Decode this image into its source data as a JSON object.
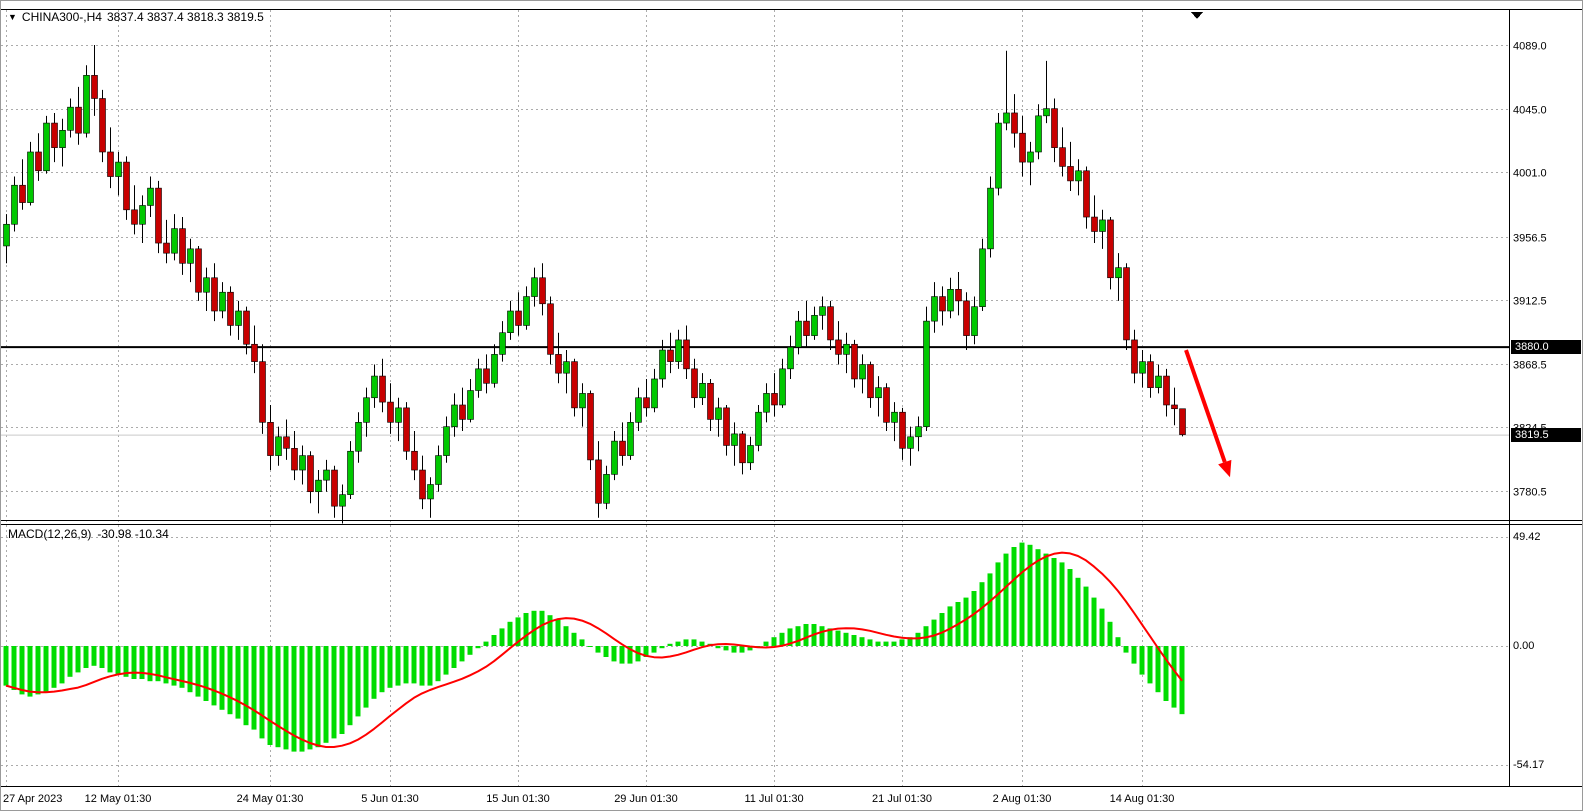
{
  "header": {
    "title": "CHINA300-,H4",
    "quote": "3837.4 3837.4 3818.3 3819.5",
    "symbol_icon": "triangle-down-icon"
  },
  "macd_panel": {
    "label": "MACD(12,26,9)",
    "values": "-30.98 -10.34"
  },
  "colors": {
    "background": "#FFFFFF",
    "candle_up": "#00C800",
    "candle_down": "#C80000",
    "candle_outline": "#000000",
    "macd_histogram": "#00DC00",
    "macd_signal": "#FF0000",
    "grid": "#ABABAB",
    "hline": "#000000",
    "arrow": "#FF0000",
    "tag_bg": "#000000",
    "tag_text": "#FFFFFF"
  },
  "chart_data": {
    "type": "candlestick+macd",
    "symbol": "CHINA300-",
    "timeframe": "H4",
    "quote": {
      "open": 3837.4,
      "high": 3837.4,
      "low": 3818.3,
      "close": 3819.5
    },
    "price_axis": {
      "ticks": [
        "4089.0",
        "4045.0",
        "4001.0",
        "3956.5",
        "3912.5",
        "3868.5",
        "3824.5",
        "3780.5"
      ],
      "max": 4089.0,
      "min": 3780.5,
      "hline": 3880.0,
      "hline_label": "3880.0",
      "current": 3819.5,
      "current_label": "3819.5"
    },
    "time_axis": [
      {
        "label": "27 Apr 2023",
        "i": 0
      },
      {
        "label": "12 May 01:30",
        "i": 14
      },
      {
        "label": "24 May 01:30",
        "i": 33
      },
      {
        "label": "5 Jun 01:30",
        "i": 48
      },
      {
        "label": "15 Jun 01:30",
        "i": 64
      },
      {
        "label": "29 Jun 01:30",
        "i": 80
      },
      {
        "label": "11 Jul 01:30",
        "i": 96
      },
      {
        "label": "21 Jul 01:30",
        "i": 112
      },
      {
        "label": "2 Aug 01:30",
        "i": 127
      },
      {
        "label": "14 Aug 01:30",
        "i": 142
      }
    ],
    "candles": [
      [
        3950,
        3972,
        3938,
        3965
      ],
      [
        3965,
        3998,
        3960,
        3992
      ],
      [
        3992,
        4010,
        3975,
        3980
      ],
      [
        3980,
        4022,
        3978,
        4015
      ],
      [
        4015,
        4028,
        3995,
        4002
      ],
      [
        4002,
        4040,
        4000,
        4035
      ],
      [
        4035,
        4042,
        4008,
        4018
      ],
      [
        4018,
        4038,
        4005,
        4030
      ],
      [
        4030,
        4052,
        4025,
        4046
      ],
      [
        4046,
        4060,
        4020,
        4028
      ],
      [
        4028,
        4075,
        4025,
        4068
      ],
      [
        4068,
        4089,
        4040,
        4052
      ],
      [
        4052,
        4058,
        4008,
        4015
      ],
      [
        4015,
        4032,
        3990,
        3998
      ],
      [
        3998,
        4015,
        3985,
        4008
      ],
      [
        4008,
        4012,
        3968,
        3975
      ],
      [
        3975,
        3992,
        3958,
        3965
      ],
      [
        3965,
        3985,
        3952,
        3978
      ],
      [
        3978,
        3998,
        3970,
        3990
      ],
      [
        3990,
        3995,
        3945,
        3952
      ],
      [
        3952,
        3968,
        3938,
        3945
      ],
      [
        3945,
        3972,
        3940,
        3962
      ],
      [
        3962,
        3970,
        3930,
        3938
      ],
      [
        3938,
        3955,
        3925,
        3948
      ],
      [
        3948,
        3950,
        3912,
        3918
      ],
      [
        3918,
        3935,
        3905,
        3928
      ],
      [
        3928,
        3938,
        3898,
        3905
      ],
      [
        3905,
        3925,
        3900,
        3918
      ],
      [
        3918,
        3922,
        3888,
        3895
      ],
      [
        3895,
        3912,
        3885,
        3905
      ],
      [
        3905,
        3908,
        3875,
        3882
      ],
      [
        3882,
        3895,
        3862,
        3870
      ],
      [
        3870,
        3882,
        3820,
        3828
      ],
      [
        3828,
        3840,
        3795,
        3805
      ],
      [
        3805,
        3825,
        3798,
        3818
      ],
      [
        3818,
        3830,
        3802,
        3810
      ],
      [
        3810,
        3822,
        3788,
        3795
      ],
      [
        3795,
        3812,
        3785,
        3805
      ],
      [
        3805,
        3808,
        3772,
        3780
      ],
      [
        3780,
        3795,
        3765,
        3788
      ],
      [
        3788,
        3802,
        3780,
        3795
      ],
      [
        3795,
        3798,
        3762,
        3770
      ],
      [
        3770,
        3785,
        3758,
        3778
      ],
      [
        3778,
        3815,
        3775,
        3808
      ],
      [
        3808,
        3835,
        3800,
        3828
      ],
      [
        3828,
        3852,
        3818,
        3845
      ],
      [
        3845,
        3868,
        3838,
        3860
      ],
      [
        3860,
        3872,
        3835,
        3842
      ],
      [
        3842,
        3855,
        3820,
        3828
      ],
      [
        3828,
        3845,
        3815,
        3838
      ],
      [
        3838,
        3842,
        3802,
        3808
      ],
      [
        3808,
        3822,
        3788,
        3795
      ],
      [
        3795,
        3805,
        3768,
        3775
      ],
      [
        3775,
        3790,
        3762,
        3785
      ],
      [
        3785,
        3812,
        3780,
        3805
      ],
      [
        3805,
        3832,
        3800,
        3825
      ],
      [
        3825,
        3848,
        3818,
        3840
      ],
      [
        3840,
        3852,
        3822,
        3830
      ],
      [
        3830,
        3858,
        3828,
        3850
      ],
      [
        3850,
        3872,
        3845,
        3865
      ],
      [
        3865,
        3875,
        3848,
        3855
      ],
      [
        3855,
        3882,
        3852,
        3875
      ],
      [
        3875,
        3898,
        3870,
        3890
      ],
      [
        3890,
        3912,
        3885,
        3905
      ],
      [
        3905,
        3918,
        3888,
        3895
      ],
      [
        3895,
        3922,
        3892,
        3915
      ],
      [
        3915,
        3935,
        3908,
        3928
      ],
      [
        3928,
        3938,
        3902,
        3910
      ],
      [
        3910,
        3915,
        3868,
        3875
      ],
      [
        3875,
        3890,
        3855,
        3862
      ],
      [
        3862,
        3878,
        3848,
        3870
      ],
      [
        3870,
        3872,
        3832,
        3838
      ],
      [
        3838,
        3855,
        3825,
        3848
      ],
      [
        3848,
        3850,
        3795,
        3802
      ],
      [
        3802,
        3815,
        3762,
        3772
      ],
      [
        3772,
        3798,
        3768,
        3792
      ],
      [
        3792,
        3822,
        3788,
        3815
      ],
      [
        3815,
        3828,
        3798,
        3805
      ],
      [
        3805,
        3835,
        3802,
        3828
      ],
      [
        3828,
        3852,
        3822,
        3845
      ],
      [
        3845,
        3858,
        3832,
        3838
      ],
      [
        3838,
        3865,
        3835,
        3858
      ],
      [
        3858,
        3885,
        3852,
        3878
      ],
      [
        3878,
        3890,
        3862,
        3870
      ],
      [
        3870,
        3892,
        3865,
        3885
      ],
      [
        3885,
        3895,
        3858,
        3865
      ],
      [
        3865,
        3872,
        3838,
        3845
      ],
      [
        3845,
        3862,
        3840,
        3855
      ],
      [
        3855,
        3858,
        3822,
        3830
      ],
      [
        3830,
        3845,
        3818,
        3838
      ],
      [
        3838,
        3840,
        3805,
        3812
      ],
      [
        3812,
        3828,
        3798,
        3820
      ],
      [
        3820,
        3822,
        3792,
        3800
      ],
      [
        3800,
        3818,
        3795,
        3812
      ],
      [
        3812,
        3840,
        3808,
        3835
      ],
      [
        3835,
        3855,
        3828,
        3848
      ],
      [
        3848,
        3862,
        3832,
        3840
      ],
      [
        3840,
        3872,
        3838,
        3865
      ],
      [
        3865,
        3888,
        3858,
        3880
      ],
      [
        3880,
        3905,
        3875,
        3898
      ],
      [
        3898,
        3912,
        3880,
        3888
      ],
      [
        3888,
        3908,
        3885,
        3902
      ],
      [
        3902,
        3915,
        3892,
        3908
      ],
      [
        3908,
        3912,
        3878,
        3885
      ],
      [
        3885,
        3898,
        3868,
        3875
      ],
      [
        3875,
        3890,
        3862,
        3882
      ],
      [
        3882,
        3885,
        3852,
        3858
      ],
      [
        3858,
        3875,
        3848,
        3868
      ],
      [
        3868,
        3870,
        3838,
        3845
      ],
      [
        3845,
        3860,
        3832,
        3852
      ],
      [
        3852,
        3855,
        3822,
        3828
      ],
      [
        3828,
        3842,
        3815,
        3835
      ],
      [
        3835,
        3838,
        3802,
        3810
      ],
      [
        3810,
        3825,
        3798,
        3818
      ],
      [
        3818,
        3832,
        3808,
        3825
      ],
      [
        3825,
        3908,
        3822,
        3898
      ],
      [
        3898,
        3925,
        3890,
        3915
      ],
      [
        3915,
        3922,
        3895,
        3905
      ],
      [
        3905,
        3928,
        3900,
        3920
      ],
      [
        3920,
        3932,
        3902,
        3912
      ],
      [
        3912,
        3918,
        3878,
        3888
      ],
      [
        3888,
        3915,
        3882,
        3908
      ],
      [
        3908,
        3955,
        3905,
        3948
      ],
      [
        3948,
        3998,
        3942,
        3990
      ],
      [
        3990,
        4042,
        3985,
        4035
      ],
      [
        4035,
        4085,
        4030,
        4042
      ],
      [
        4042,
        4055,
        4018,
        4028
      ],
      [
        4028,
        4040,
        3998,
        4008
      ],
      [
        4008,
        4022,
        3992,
        4015
      ],
      [
        4015,
        4048,
        4010,
        4040
      ],
      [
        4040,
        4078,
        4035,
        4045
      ],
      [
        4045,
        4052,
        4008,
        4018
      ],
      [
        4018,
        4032,
        3998,
        4005
      ],
      [
        4005,
        4022,
        3988,
        3995
      ],
      [
        3995,
        4010,
        3985,
        4002
      ],
      [
        4002,
        4005,
        3962,
        3970
      ],
      [
        3970,
        3985,
        3952,
        3960
      ],
      [
        3960,
        3975,
        3948,
        3968
      ],
      [
        3968,
        3970,
        3920,
        3928
      ],
      [
        3928,
        3945,
        3912,
        3935
      ],
      [
        3935,
        3938,
        3878,
        3885
      ],
      [
        3885,
        3892,
        3855,
        3862
      ],
      [
        3862,
        3878,
        3852,
        3870
      ],
      [
        3870,
        3875,
        3845,
        3852
      ],
      [
        3852,
        3868,
        3848,
        3860
      ],
      [
        3860,
        3865,
        3832,
        3840
      ],
      [
        3840,
        3852,
        3826,
        3837.4
      ],
      [
        3837.4,
        3837.4,
        3818.3,
        3819.5
      ]
    ],
    "macd": {
      "params": "12,26,9",
      "macd_last": -30.98,
      "signal_last": -10.34,
      "axis_labels": [
        "49.42",
        "0.00",
        "-54.17"
      ],
      "axis_values": [
        49.42,
        0.0,
        -54.17
      ],
      "histogram": [
        -18,
        -20,
        -22,
        -23,
        -22,
        -21,
        -19,
        -17,
        -14,
        -12,
        -10,
        -9,
        -10,
        -12,
        -13,
        -14,
        -15,
        -15,
        -16,
        -16,
        -17,
        -18,
        -19,
        -21,
        -23,
        -25,
        -27,
        -29,
        -31,
        -33,
        -36,
        -38,
        -42,
        -45,
        -46,
        -47,
        -48,
        -48,
        -47,
        -46,
        -44,
        -42,
        -40,
        -36,
        -32,
        -28,
        -24,
        -21,
        -19,
        -18,
        -17,
        -17,
        -18,
        -18,
        -16,
        -13,
        -10,
        -7,
        -4,
        -1,
        2,
        5,
        8,
        11,
        13,
        15,
        16,
        16,
        14,
        12,
        9,
        6,
        3,
        0,
        -3,
        -5,
        -7,
        -8,
        -8,
        -7,
        -5,
        -3,
        -1,
        1,
        2,
        3,
        3,
        2,
        1,
        -1,
        -2,
        -3,
        -3,
        -2,
        0,
        2,
        4,
        6,
        8,
        9,
        10,
        10,
        9,
        8,
        7,
        6,
        5,
        4,
        3,
        2,
        2,
        2,
        3,
        4,
        6,
        9,
        12,
        15,
        18,
        20,
        22,
        25,
        29,
        33,
        38,
        42,
        45,
        47,
        46,
        44,
        42,
        40,
        38,
        35,
        31,
        27,
        22,
        17,
        11,
        4,
        -3,
        -8,
        -13,
        -17,
        -21,
        -25,
        -28,
        -30.98
      ]
    },
    "annotations": {
      "arrow": {
        "type": "trend-arrow-down",
        "from_i": 147.5,
        "from_price": 3878,
        "to_i": 153,
        "to_price": 3790,
        "color": "#FF0000"
      }
    }
  }
}
